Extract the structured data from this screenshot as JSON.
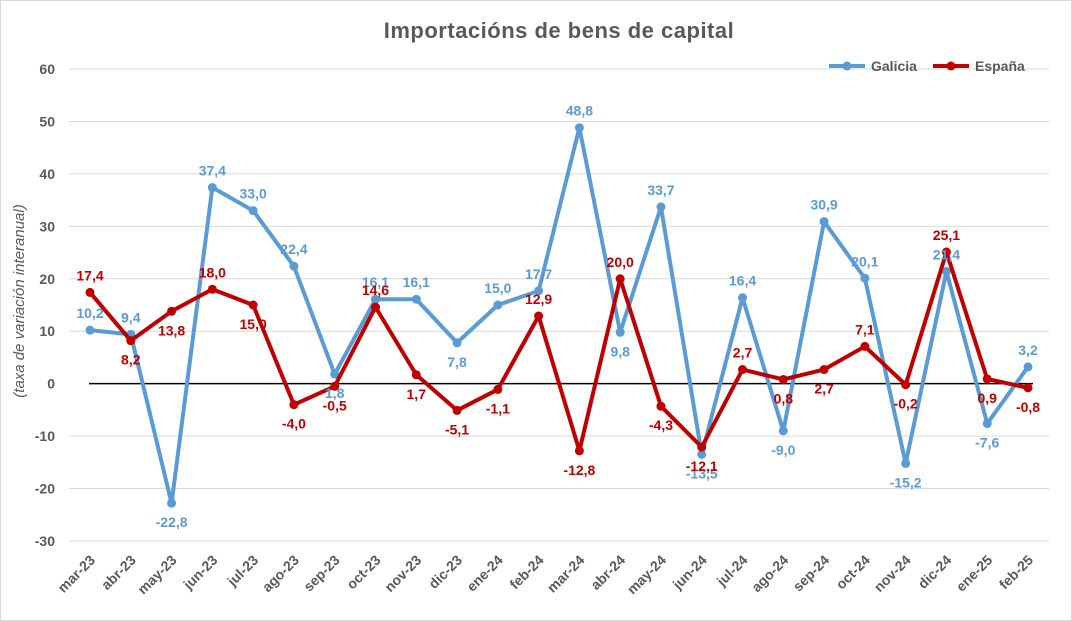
{
  "chart_data": {
    "type": "line",
    "title": "Importacións de bens de capital",
    "ylabel": "(taxa de variación interanual)",
    "xlabel": "",
    "ylim": [
      -30,
      60
    ],
    "yticks": [
      -30,
      -20,
      -10,
      0,
      10,
      20,
      30,
      40,
      50,
      60
    ],
    "grid": "horizontal",
    "legend_position": "top-right",
    "categories": [
      "mar-23",
      "abr-23",
      "may-23",
      "jun-23",
      "jul-23",
      "ago-23",
      "sep-23",
      "oct-23",
      "nov-23",
      "dic-23",
      "ene-24",
      "feb-24",
      "mar-24",
      "abr-24",
      "may-24",
      "jun-24",
      "jul-24",
      "ago-24",
      "sep-24",
      "oct-24",
      "nov-24",
      "dic-24",
      "ene-25",
      "feb-25"
    ],
    "series": [
      {
        "name": "Galicia",
        "color": "#5b9bd5",
        "values": [
          10.2,
          9.4,
          -22.8,
          37.4,
          33.0,
          22.4,
          1.8,
          16.1,
          16.1,
          7.8,
          15.0,
          17.7,
          48.8,
          9.8,
          33.7,
          -13.5,
          16.4,
          -9.0,
          30.9,
          20.1,
          -15.2,
          21.4,
          -7.6,
          3.2
        ],
        "labels": [
          "10,2",
          "9,4",
          "-22,8",
          "37,4",
          "33,0",
          "22,4",
          "1,8",
          "16,1",
          "16,1",
          "7,8",
          "15,0",
          "17,7",
          "48,8",
          "9,8",
          "33,7",
          "-13,5",
          "16,4",
          "-9,0",
          "30,9",
          "20,1",
          "-15,2",
          "21,4",
          "-7,6",
          "3,2"
        ]
      },
      {
        "name": "España",
        "color": "#c00000",
        "values": [
          17.4,
          8.2,
          13.8,
          18.0,
          15.0,
          -4.0,
          -0.5,
          14.6,
          1.7,
          -5.1,
          -1.1,
          12.9,
          -12.8,
          20.0,
          -4.3,
          -12.1,
          2.7,
          0.8,
          2.7,
          7.1,
          -0.2,
          25.1,
          0.9,
          -0.8
        ],
        "labels": [
          "17,4",
          "8,2",
          "13,8",
          "18,0",
          "15,0",
          "-4,0",
          "-0,5",
          "14,6",
          "1,7",
          "-5,1",
          "-1,1",
          "12,9",
          "-12,8",
          "20,0",
          "-4,3",
          "-12,1",
          "2,7",
          "0,8",
          "2,7",
          "7,1",
          "-0,2",
          "25,1",
          "0,9",
          "-0,8"
        ]
      }
    ]
  }
}
